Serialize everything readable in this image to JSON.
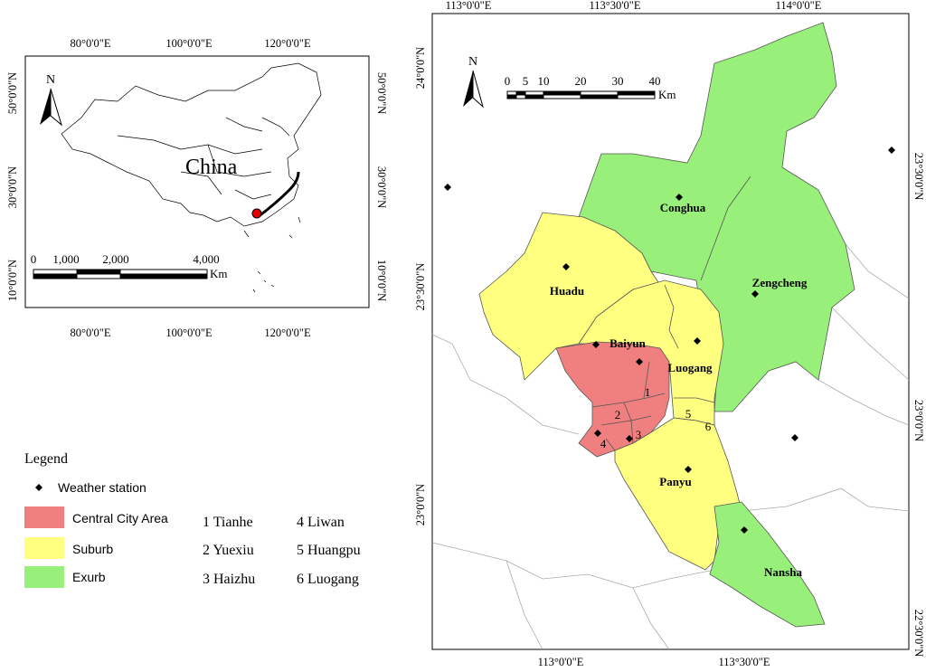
{
  "inset": {
    "top_ticks": [
      "80°0'0\"E",
      "100°0'0\"E",
      "120°0'0\"E"
    ],
    "bottom_ticks": [
      "80°0'0\"E",
      "100°0'0\"E",
      "120°0'0\"E"
    ],
    "left_ticks": [
      "50°0'0\"N",
      "30°0'0\"N",
      "10°0'0\"N"
    ],
    "right_ticks": [
      "50°0'0\"N",
      "30°0'0\"N",
      "10°0'0\"N"
    ],
    "north": "N",
    "country": "China",
    "scale_labels": [
      "0",
      "1,000",
      "2,000",
      "4,000"
    ],
    "scale_unit": "Km"
  },
  "main_map": {
    "top_ticks": [
      "113°0'0\"E",
      "113°30'0\"E",
      "114°0'0\"E"
    ],
    "bottom_ticks": [
      "113°0'0\"E",
      "113°30'0\"E"
    ],
    "left_ticks": [
      "24°0'0\"N",
      "23°30'0\"N",
      "23°0'0\"N"
    ],
    "right_ticks": [
      "23°30'0\"N",
      "23°0'0\"N",
      "22°30'0\"N"
    ],
    "north": "N",
    "scale_labels": [
      "0",
      "5",
      "10",
      "20",
      "30",
      "40"
    ],
    "scale_unit": "Km",
    "districts": [
      "Conghua",
      "Zengcheng",
      "Huadu",
      "Baiyun",
      "Luogang",
      "Panyu",
      "Nansha"
    ],
    "numbers": [
      "1",
      "2",
      "3",
      "4",
      "5",
      "6"
    ]
  },
  "legend": {
    "title": "Legend",
    "station": "Weather station",
    "categories": [
      "Central City Area",
      "Suburb",
      "Exurb"
    ],
    "districts": [
      "1 Tianhe",
      "2 Yuexiu",
      "3 Haizhu",
      "4 Liwan",
      "5 Huangpu",
      "6 Luogang"
    ]
  }
}
